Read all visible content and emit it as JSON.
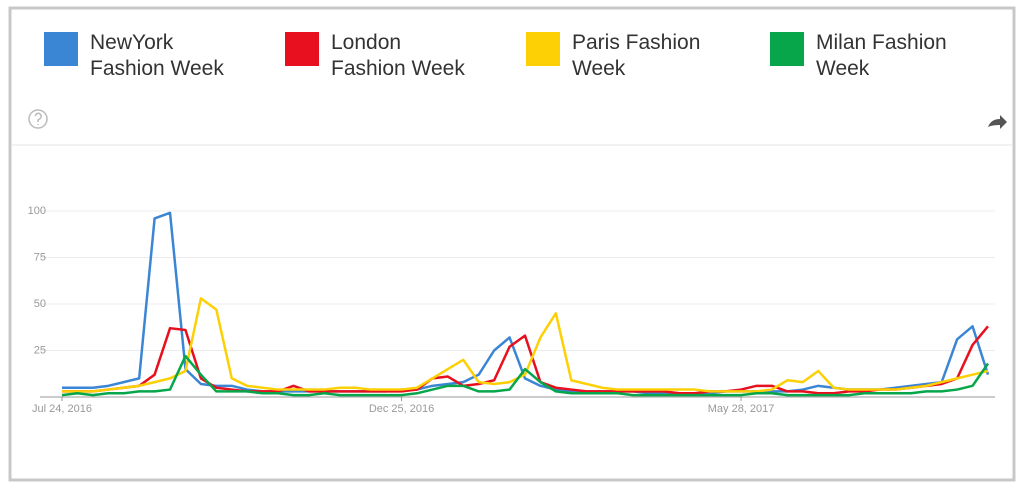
{
  "chart_data": {
    "type": "line",
    "categories": [
      "Jul 24, 2016",
      null,
      null,
      null,
      null,
      null,
      null,
      null,
      null,
      null,
      null,
      null,
      null,
      null,
      null,
      null,
      null,
      null,
      null,
      null,
      null,
      null,
      "Dec 25, 2016",
      null,
      null,
      null,
      null,
      null,
      null,
      null,
      null,
      null,
      null,
      null,
      null,
      null,
      null,
      null,
      null,
      null,
      null,
      null,
      null,
      null,
      "May 28, 2017",
      null,
      null,
      null,
      null,
      null,
      null,
      null,
      null,
      null,
      null,
      null,
      null,
      null,
      null,
      null,
      null
    ],
    "series": [
      {
        "name": "NewYork Fashion Week",
        "color": "#3b86d4",
        "values": [
          5,
          5,
          5,
          6,
          8,
          10,
          96,
          99,
          15,
          7,
          6,
          6,
          4,
          3,
          3,
          3,
          3,
          3,
          3,
          3,
          3,
          3,
          4,
          4,
          6,
          7,
          8,
          12,
          25,
          32,
          10,
          6,
          4,
          3,
          3,
          3,
          3,
          3,
          2,
          2,
          2,
          2,
          2,
          3,
          3,
          3,
          3,
          3,
          4,
          6,
          5,
          4,
          4,
          4,
          5,
          6,
          7,
          8,
          31,
          38,
          12
        ]
      },
      {
        "name": "London Fashion Week",
        "color": "#e8101f",
        "values": [
          3,
          3,
          3,
          4,
          5,
          6,
          12,
          37,
          36,
          10,
          5,
          4,
          3,
          3,
          3,
          6,
          3,
          3,
          3,
          3,
          3,
          3,
          3,
          4,
          10,
          11,
          6,
          7,
          9,
          27,
          33,
          8,
          5,
          4,
          3,
          3,
          3,
          3,
          3,
          3,
          2,
          2,
          3,
          3,
          4,
          6,
          6,
          3,
          3,
          2,
          2,
          3,
          3,
          4,
          4,
          5,
          6,
          7,
          10,
          28,
          38
        ]
      },
      {
        "name": "Paris Fashion Week",
        "color": "#fcd005",
        "values": [
          3,
          3,
          3,
          4,
          5,
          6,
          8,
          10,
          14,
          53,
          47,
          10,
          6,
          5,
          4,
          4,
          4,
          4,
          5,
          5,
          4,
          4,
          4,
          5,
          10,
          15,
          20,
          8,
          7,
          8,
          12,
          32,
          45,
          9,
          7,
          5,
          4,
          4,
          4,
          4,
          4,
          4,
          3,
          3,
          3,
          3,
          4,
          9,
          8,
          14,
          5,
          4,
          4,
          4,
          4,
          5,
          6,
          8,
          10,
          12,
          14
        ]
      },
      {
        "name": "Milan Fashion Week",
        "color": "#07a64a",
        "values": [
          1,
          2,
          1,
          2,
          2,
          3,
          3,
          4,
          22,
          12,
          3,
          3,
          3,
          2,
          2,
          1,
          1,
          2,
          1,
          1,
          1,
          1,
          1,
          2,
          4,
          6,
          6,
          3,
          3,
          4,
          15,
          8,
          3,
          2,
          2,
          2,
          2,
          1,
          1,
          1,
          1,
          1,
          1,
          1,
          1,
          2,
          2,
          1,
          1,
          1,
          1,
          1,
          2,
          2,
          2,
          2,
          3,
          3,
          4,
          6,
          18
        ]
      }
    ],
    "ylim": [
      0,
      100
    ],
    "yticks": [
      25,
      50,
      75,
      100
    ],
    "grid": true
  }
}
